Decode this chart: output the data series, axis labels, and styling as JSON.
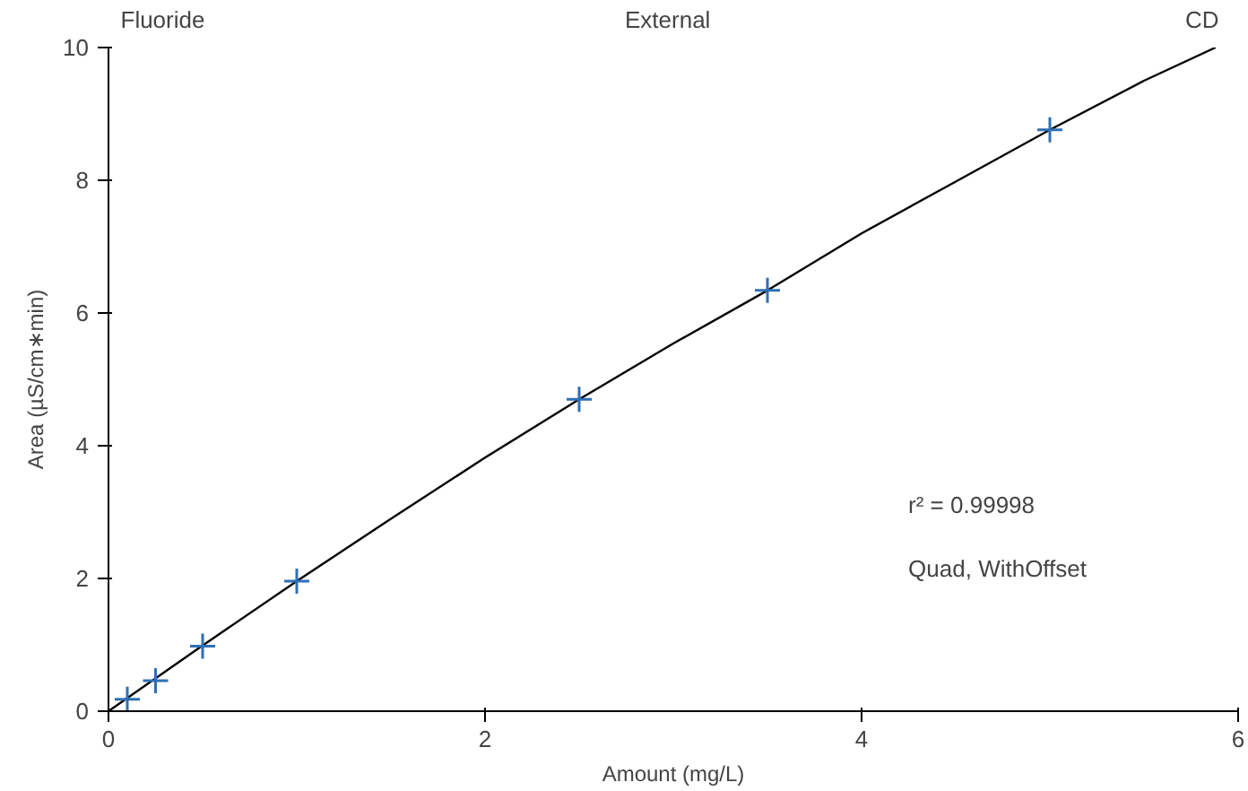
{
  "chart_data": {
    "type": "scatter",
    "xlabel": "Amount (mg/L)",
    "ylabel": "Area (µS/cm∗min)",
    "xlim": [
      0,
      6
    ],
    "ylim": [
      0,
      10
    ],
    "xticks": [
      0,
      2,
      4,
      6
    ],
    "yticks": [
      0,
      2,
      4,
      6,
      8,
      10
    ],
    "grid": false,
    "annotations": [
      "Fluoride",
      "External",
      "CD",
      "r² = 0.99998",
      "Quad, WithOffset"
    ],
    "series": [
      {
        "type": "line",
        "color": "#000000",
        "marker": "none",
        "line_style": "solid",
        "x": [
          0,
          0.5,
          1,
          1.5,
          2,
          2.5,
          3,
          3.5,
          4,
          4.5,
          5,
          5.5,
          5.88
        ],
        "values": [
          0,
          0.99,
          1.96,
          2.9,
          3.82,
          4.7,
          5.54,
          6.34,
          7.2,
          7.98,
          8.76,
          9.5,
          10.0
        ]
      },
      {
        "type": "scatter",
        "color": "#2e6fb5",
        "marker": "cross",
        "x": [
          0.1,
          0.25,
          0.5,
          1,
          2.5,
          3.5,
          5
        ],
        "values": [
          0.18,
          0.46,
          0.98,
          1.96,
          4.7,
          6.34,
          8.76
        ]
      }
    ]
  }
}
